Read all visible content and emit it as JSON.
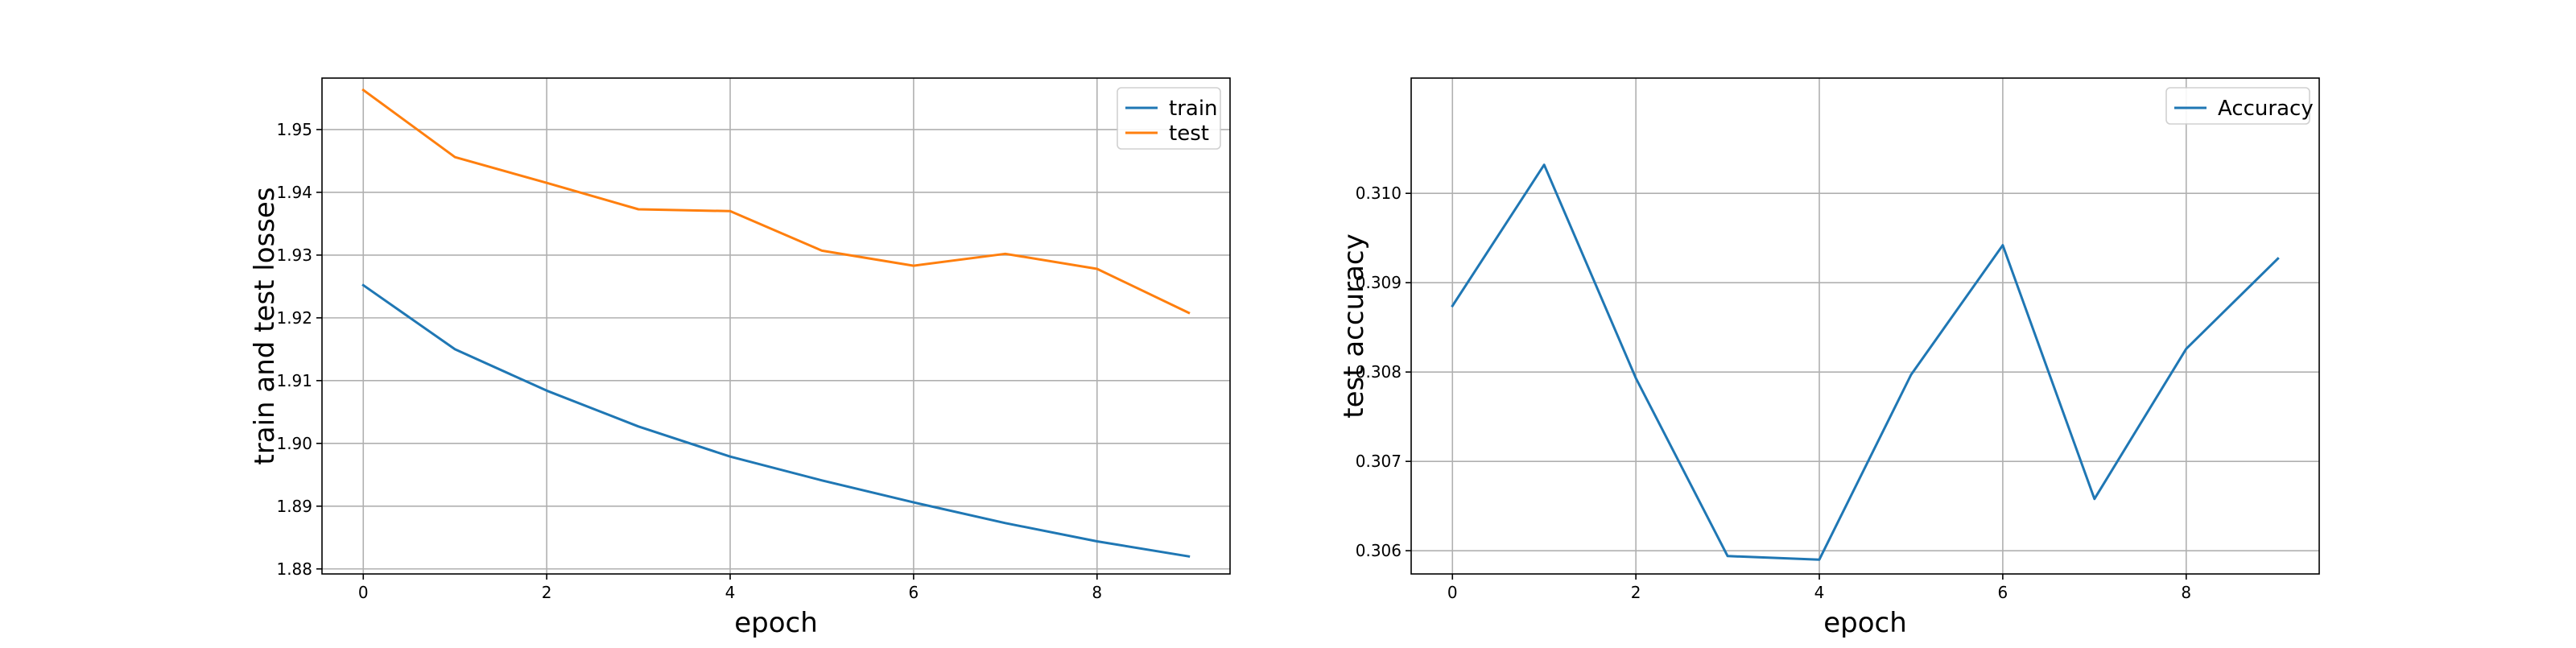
{
  "chart_data": [
    {
      "type": "line",
      "xlabel": "epoch",
      "ylabel": "train and test losses",
      "x": [
        0,
        1,
        2,
        3,
        4,
        5,
        6,
        7,
        8,
        9
      ],
      "xlim": [
        -0.45,
        9.45
      ],
      "ylim": [
        1.8792,
        1.9582
      ],
      "xticks": [
        0,
        2,
        4,
        6,
        8
      ],
      "xtick_labels": [
        "0",
        "2",
        "4",
        "6",
        "8"
      ],
      "yticks": [
        1.88,
        1.89,
        1.9,
        1.91,
        1.92,
        1.93,
        1.94,
        1.95
      ],
      "ytick_labels": [
        "1.88",
        "1.89",
        "1.90",
        "1.91",
        "1.92",
        "1.93",
        "1.94",
        "1.95"
      ],
      "grid": true,
      "legend_position": "top-right",
      "series": [
        {
          "name": "train",
          "color": "#1f77b4",
          "values": [
            1.9252,
            1.915,
            1.9084,
            1.9027,
            1.8979,
            1.8941,
            1.8906,
            1.8873,
            1.8844,
            1.882
          ]
        },
        {
          "name": "test",
          "color": "#ff7f0e",
          "values": [
            1.9563,
            1.9456,
            1.9415,
            1.9373,
            1.937,
            1.9307,
            1.9283,
            1.9302,
            1.9278,
            1.9208
          ]
        }
      ]
    },
    {
      "type": "line",
      "xlabel": "epoch",
      "ylabel": "test accuracy",
      "x": [
        0,
        1,
        2,
        3,
        4,
        5,
        6,
        7,
        8,
        9
      ],
      "xlim": [
        -0.45,
        9.45
      ],
      "ylim": [
        0.30574,
        0.31129
      ],
      "xticks": [
        0,
        2,
        4,
        6,
        8
      ],
      "xtick_labels": [
        "0",
        "2",
        "4",
        "6",
        "8"
      ],
      "yticks": [
        0.306,
        0.307,
        0.308,
        0.309,
        0.31
      ],
      "ytick_labels": [
        "0.306",
        "0.307",
        "0.308",
        "0.309",
        "0.310"
      ],
      "grid": true,
      "legend_position": "top-right",
      "series": [
        {
          "name": "Accuracy",
          "color": "#1f77b4",
          "values": [
            0.30874,
            0.31032,
            0.30793,
            0.30594,
            0.3059,
            0.30797,
            0.30942,
            0.30658,
            0.30826,
            0.30927
          ]
        }
      ]
    }
  ]
}
